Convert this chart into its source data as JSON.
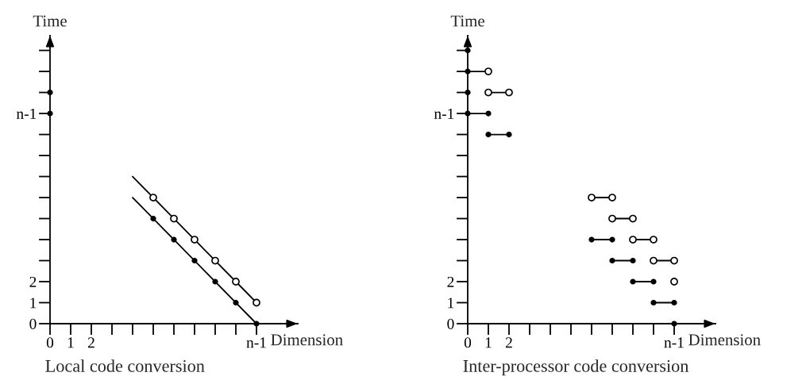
{
  "chart_data": [
    {
      "type": "scatter",
      "title": "Local code conversion",
      "xlabel": "Dimension",
      "ylabel": "Time",
      "marker": "circle",
      "line_style": "solid",
      "grid": false,
      "legend": false,
      "xlim": [
        0,
        12
      ],
      "ylim": [
        0,
        13.7
      ],
      "xticks": [
        0,
        1,
        2,
        {
          "value": 3,
          "label": null
        },
        {
          "value": 4,
          "label": null
        },
        {
          "value": 5,
          "label": null
        },
        {
          "value": 6,
          "label": null
        },
        {
          "value": 7,
          "label": null
        },
        {
          "value": 8,
          "label": null
        },
        {
          "value": 9,
          "label": null
        },
        {
          "value": 10,
          "label": "n-1"
        }
      ],
      "yticks": [
        0,
        1,
        2,
        {
          "value": 3,
          "label": null
        },
        {
          "value": 4,
          "label": null
        },
        {
          "value": 5,
          "label": null
        },
        {
          "value": 6,
          "label": null
        },
        {
          "value": 7,
          "label": null
        },
        {
          "value": 8,
          "label": null
        },
        {
          "value": 9,
          "label": null
        },
        {
          "value": 10,
          "label": "n-1"
        },
        {
          "value": 11,
          "label": null
        },
        {
          "value": 12,
          "label": null
        },
        {
          "value": 13,
          "label": null
        }
      ],
      "series": [
        {
          "type": "line",
          "marker": "none",
          "color": "#000000",
          "x": [
            4,
            10
          ],
          "values": [
            7,
            1
          ]
        },
        {
          "type": "line",
          "marker": "none",
          "color": "#000000",
          "x": [
            4,
            10
          ],
          "values": [
            6,
            0
          ]
        },
        {
          "color": "#ffffff",
          "x": [
            5,
            6,
            7,
            8,
            9,
            10
          ],
          "values": [
            6,
            5,
            4,
            3,
            2,
            1
          ]
        },
        {
          "color": "#000000",
          "x": [
            5,
            6,
            7,
            8,
            9,
            10,
            0,
            0
          ],
          "values": [
            5,
            4,
            3,
            2,
            1,
            0,
            10,
            11
          ]
        }
      ]
    },
    {
      "type": "scatter",
      "title": "Inter-processor code conversion",
      "xlabel": "Dimension",
      "ylabel": "Time",
      "marker": "circle",
      "line_style": "solid",
      "grid": false,
      "legend": false,
      "xlim": [
        0,
        12
      ],
      "ylim": [
        0,
        13.7
      ],
      "xticks": [
        0,
        1,
        2,
        {
          "value": 3,
          "label": null
        },
        {
          "value": 4,
          "label": null
        },
        {
          "value": 5,
          "label": null
        },
        {
          "value": 6,
          "label": null
        },
        {
          "value": 7,
          "label": null
        },
        {
          "value": 8,
          "label": null
        },
        {
          "value": 9,
          "label": null
        },
        {
          "value": 10,
          "label": "n-1"
        }
      ],
      "yticks": [
        0,
        1,
        2,
        {
          "value": 3,
          "label": null
        },
        {
          "value": 4,
          "label": null
        },
        {
          "value": 5,
          "label": null
        },
        {
          "value": 6,
          "label": null
        },
        {
          "value": 7,
          "label": null
        },
        {
          "value": 8,
          "label": null
        },
        {
          "value": 9,
          "label": null
        },
        {
          "value": 10,
          "label": "n-1"
        },
        {
          "value": 11,
          "label": null
        },
        {
          "value": 12,
          "label": null
        },
        {
          "value": 13,
          "label": null
        }
      ],
      "series": [
        {
          "type": "line",
          "marker": "none",
          "color": "#000000",
          "x": [
            0,
            1
          ],
          "values": [
            12,
            12
          ]
        },
        {
          "type": "line",
          "marker": "none",
          "color": "#000000",
          "x": [
            1,
            2
          ],
          "values": [
            11,
            11
          ]
        },
        {
          "type": "line",
          "marker": "none",
          "color": "#000000",
          "x": [
            0,
            1
          ],
          "values": [
            10,
            10
          ]
        },
        {
          "type": "line",
          "marker": "none",
          "color": "#000000",
          "x": [
            1,
            2
          ],
          "values": [
            9,
            9
          ]
        },
        {
          "type": "line",
          "marker": "none",
          "color": "#000000",
          "x": [
            6,
            7
          ],
          "values": [
            6,
            6
          ]
        },
        {
          "type": "line",
          "marker": "none",
          "color": "#000000",
          "x": [
            7,
            8
          ],
          "values": [
            5,
            5
          ]
        },
        {
          "type": "line",
          "marker": "none",
          "color": "#000000",
          "x": [
            6,
            7
          ],
          "values": [
            4,
            4
          ]
        },
        {
          "type": "line",
          "marker": "none",
          "color": "#000000",
          "x": [
            8,
            9
          ],
          "values": [
            4,
            4
          ]
        },
        {
          "type": "line",
          "marker": "none",
          "color": "#000000",
          "x": [
            7,
            8
          ],
          "values": [
            3,
            3
          ]
        },
        {
          "type": "line",
          "marker": "none",
          "color": "#000000",
          "x": [
            9,
            10
          ],
          "values": [
            3,
            3
          ]
        },
        {
          "type": "line",
          "marker": "none",
          "color": "#000000",
          "x": [
            8,
            9
          ],
          "values": [
            2,
            2
          ]
        },
        {
          "type": "line",
          "marker": "none",
          "color": "#000000",
          "x": [
            9,
            10
          ],
          "values": [
            1,
            1
          ]
        },
        {
          "color": "#ffffff",
          "x": [
            1,
            1,
            2,
            6,
            7,
            7,
            8,
            8,
            9,
            9,
            10,
            10
          ],
          "values": [
            12,
            11,
            11,
            6,
            6,
            5,
            5,
            4,
            4,
            3,
            3,
            2
          ]
        },
        {
          "color": "#000000",
          "x": [
            0,
            0,
            0,
            0,
            1,
            1,
            2,
            6,
            7,
            7,
            8,
            8,
            9,
            9,
            10,
            10
          ],
          "values": [
            13,
            12,
            11,
            10,
            10,
            9,
            9,
            4,
            4,
            3,
            3,
            2,
            2,
            1,
            1,
            0
          ]
        }
      ]
    }
  ]
}
